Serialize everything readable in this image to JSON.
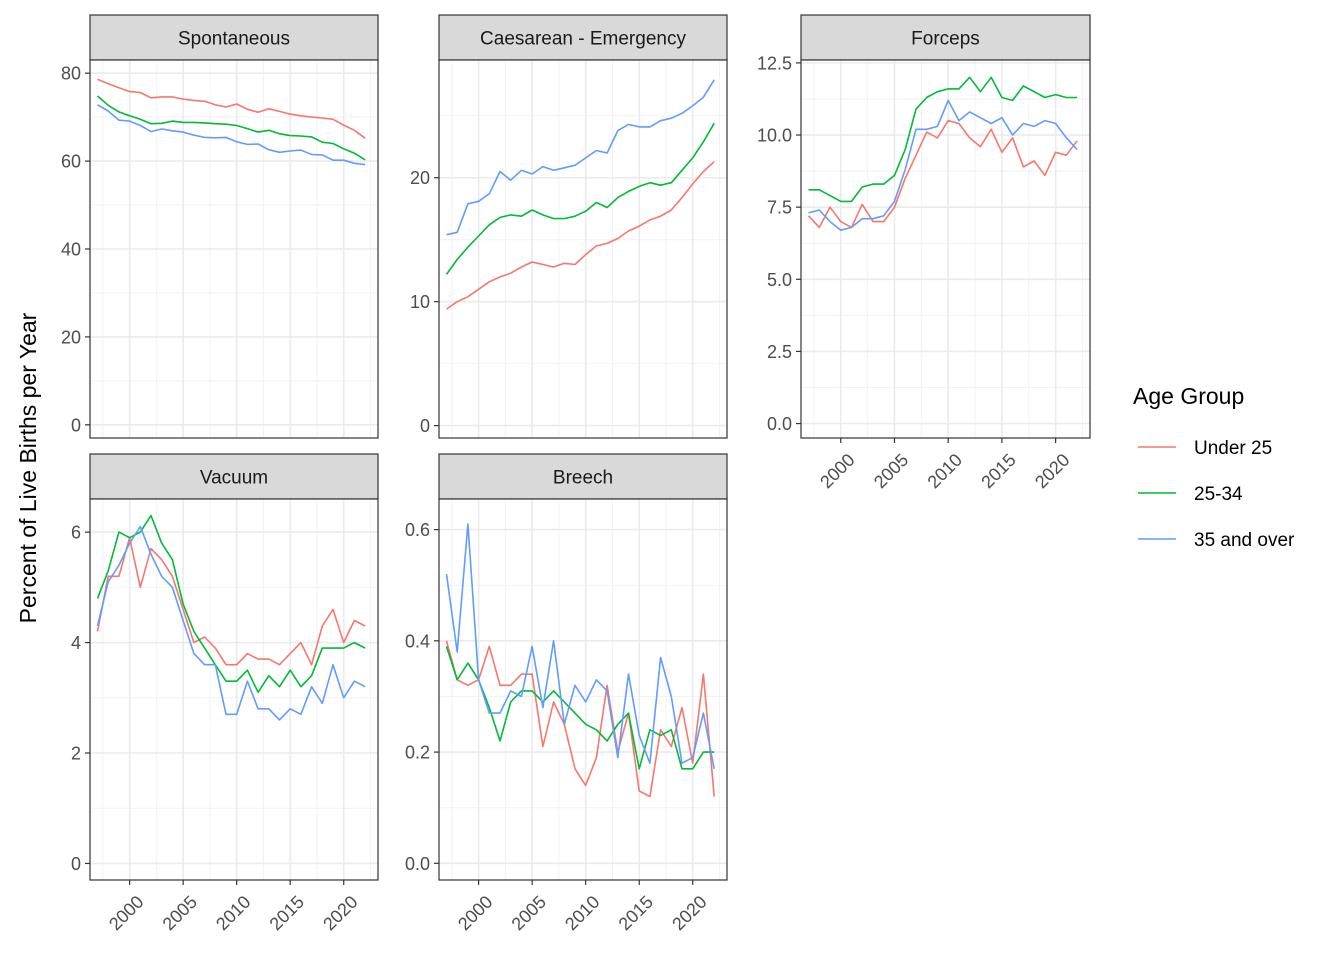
{
  "ylabel": "Percent of Live Births per Year",
  "legend": {
    "title": "Age Group",
    "entries": [
      {
        "name": "Under 25",
        "color": "#F8766D"
      },
      {
        "name": "25-34",
        "color": "#00BA38"
      },
      {
        "name": "35 and over",
        "color": "#619CFF"
      }
    ]
  },
  "chart_data": [
    {
      "type": "line",
      "title": "Spontaneous",
      "x": [
        1997,
        1998,
        1999,
        2000,
        2001,
        2002,
        2003,
        2004,
        2005,
        2006,
        2007,
        2008,
        2009,
        2010,
        2011,
        2012,
        2013,
        2014,
        2015,
        2016,
        2017,
        2018,
        2019,
        2020,
        2021,
        2022
      ],
      "xlim": [
        1996.3,
        2023.2
      ],
      "xticks": [
        2000,
        2005,
        2010,
        2015,
        2020
      ],
      "ylim": [
        -3,
        83
      ],
      "yticks": [
        0,
        20,
        40,
        60,
        80
      ],
      "series": [
        {
          "name": "Under 25",
          "values": [
            78.6,
            77.6,
            76.7,
            75.8,
            75.6,
            74.4,
            74.6,
            74.6,
            74.1,
            73.8,
            73.6,
            72.8,
            72.3,
            73.0,
            71.8,
            71.1,
            71.9,
            71.3,
            70.7,
            70.3,
            70.0,
            69.8,
            69.5,
            68.2,
            67.0,
            65.2
          ]
        },
        {
          "name": "25-34",
          "values": [
            74.8,
            72.7,
            71.2,
            70.3,
            69.5,
            68.5,
            68.6,
            69.1,
            68.8,
            68.8,
            68.7,
            68.5,
            68.4,
            68.1,
            67.4,
            66.6,
            67.0,
            66.2,
            65.8,
            65.7,
            65.5,
            64.3,
            64.0,
            62.8,
            61.8,
            60.3
          ]
        },
        {
          "name": "35 and over",
          "values": [
            72.8,
            71.4,
            69.3,
            69.1,
            68.1,
            66.7,
            67.3,
            66.9,
            66.6,
            65.9,
            65.4,
            65.3,
            65.4,
            64.4,
            63.8,
            63.9,
            62.6,
            62.0,
            62.3,
            62.5,
            61.5,
            61.4,
            60.2,
            60.2,
            59.5,
            59.2
          ]
        }
      ]
    },
    {
      "type": "line",
      "title": "Caesarean - Emergency",
      "x": [
        1997,
        1998,
        1999,
        2000,
        2001,
        2002,
        2003,
        2004,
        2005,
        2006,
        2007,
        2008,
        2009,
        2010,
        2011,
        2012,
        2013,
        2014,
        2015,
        2016,
        2017,
        2018,
        2019,
        2020,
        2021,
        2022
      ],
      "xlim": [
        1996.3,
        2023.2
      ],
      "xticks": [
        2000,
        2005,
        2010,
        2015,
        2020
      ],
      "ylim": [
        -1,
        29.5
      ],
      "yticks": [
        0,
        10,
        20
      ],
      "series": [
        {
          "name": "Under 25",
          "values": [
            9.4,
            10.0,
            10.4,
            11.0,
            11.6,
            12.0,
            12.3,
            12.8,
            13.2,
            13.0,
            12.8,
            13.1,
            13.0,
            13.8,
            14.5,
            14.7,
            15.1,
            15.7,
            16.1,
            16.6,
            16.9,
            17.4,
            18.4,
            19.5,
            20.5,
            21.3
          ]
        },
        {
          "name": "25-34",
          "values": [
            12.2,
            13.4,
            14.4,
            15.3,
            16.2,
            16.8,
            17.0,
            16.9,
            17.4,
            17.0,
            16.7,
            16.7,
            16.9,
            17.3,
            18.0,
            17.6,
            18.4,
            18.9,
            19.3,
            19.6,
            19.4,
            19.6,
            20.6,
            21.6,
            22.9,
            24.4
          ]
        },
        {
          "name": "35 and over",
          "values": [
            15.4,
            15.6,
            17.9,
            18.1,
            18.7,
            20.5,
            19.8,
            20.6,
            20.3,
            20.9,
            20.6,
            20.8,
            21.0,
            21.6,
            22.2,
            22.0,
            23.8,
            24.3,
            24.1,
            24.1,
            24.6,
            24.8,
            25.2,
            25.8,
            26.5,
            27.9
          ]
        }
      ]
    },
    {
      "type": "line",
      "title": "Forceps",
      "x": [
        1997,
        1998,
        1999,
        2000,
        2001,
        2002,
        2003,
        2004,
        2005,
        2006,
        2007,
        2008,
        2009,
        2010,
        2011,
        2012,
        2013,
        2014,
        2015,
        2016,
        2017,
        2018,
        2019,
        2020,
        2021,
        2022
      ],
      "xlim": [
        1996.3,
        2023.2
      ],
      "xticks": [
        2000,
        2005,
        2010,
        2015,
        2020
      ],
      "ylim": [
        -0.5,
        12.6
      ],
      "yticks": [
        0.0,
        2.5,
        5.0,
        7.5,
        10.0,
        12.5
      ],
      "yticklabels": [
        "0.0",
        "2.5",
        "5.0",
        "7.5",
        "10.0",
        "12.5"
      ],
      "series": [
        {
          "name": "Under 25",
          "values": [
            7.2,
            6.8,
            7.5,
            7.0,
            6.8,
            7.6,
            7.0,
            7.0,
            7.5,
            8.5,
            9.3,
            10.1,
            9.9,
            10.5,
            10.4,
            9.9,
            9.6,
            10.2,
            9.4,
            9.9,
            8.9,
            9.1,
            8.6,
            9.4,
            9.3,
            9.8
          ]
        },
        {
          "name": "25-34",
          "values": [
            8.1,
            8.1,
            7.9,
            7.7,
            7.7,
            8.2,
            8.3,
            8.3,
            8.6,
            9.5,
            10.9,
            11.3,
            11.5,
            11.6,
            11.6,
            12.0,
            11.5,
            12.0,
            11.3,
            11.2,
            11.7,
            11.5,
            11.3,
            11.4,
            11.3,
            11.3
          ]
        },
        {
          "name": "35 and over",
          "values": [
            7.3,
            7.4,
            7.0,
            6.7,
            6.8,
            7.1,
            7.1,
            7.2,
            7.7,
            8.8,
            10.2,
            10.2,
            10.3,
            11.2,
            10.5,
            10.8,
            10.6,
            10.4,
            10.6,
            10.0,
            10.4,
            10.3,
            10.5,
            10.4,
            9.9,
            9.5
          ]
        }
      ]
    },
    {
      "type": "line",
      "title": "Vacuum",
      "x": [
        1997,
        1998,
        1999,
        2000,
        2001,
        2002,
        2003,
        2004,
        2005,
        2006,
        2007,
        2008,
        2009,
        2010,
        2011,
        2012,
        2013,
        2014,
        2015,
        2016,
        2017,
        2018,
        2019,
        2020,
        2021,
        2022
      ],
      "xlim": [
        1996.3,
        2023.2
      ],
      "xticks": [
        2000,
        2005,
        2010,
        2015,
        2020
      ],
      "ylim": [
        -0.3,
        6.6
      ],
      "yticks": [
        0,
        2,
        4,
        6
      ],
      "series": [
        {
          "name": "Under 25",
          "values": [
            4.2,
            5.2,
            5.2,
            5.9,
            5.0,
            5.7,
            5.5,
            5.2,
            4.6,
            4.0,
            4.1,
            3.9,
            3.6,
            3.6,
            3.8,
            3.7,
            3.7,
            3.6,
            3.8,
            4.0,
            3.6,
            4.3,
            4.6,
            4.0,
            4.4,
            4.3
          ]
        },
        {
          "name": "25-34",
          "values": [
            4.8,
            5.3,
            6.0,
            5.9,
            6.0,
            6.3,
            5.8,
            5.5,
            4.7,
            4.2,
            3.9,
            3.6,
            3.3,
            3.3,
            3.5,
            3.1,
            3.4,
            3.2,
            3.5,
            3.2,
            3.4,
            3.9,
            3.9,
            3.9,
            4.0,
            3.9
          ]
        },
        {
          "name": "35 and over",
          "values": [
            4.3,
            5.1,
            5.4,
            5.8,
            6.1,
            5.6,
            5.2,
            5.0,
            4.4,
            3.8,
            3.6,
            3.6,
            2.7,
            2.7,
            3.3,
            2.8,
            2.8,
            2.6,
            2.8,
            2.7,
            3.2,
            2.9,
            3.6,
            3.0,
            3.3,
            3.2
          ]
        }
      ]
    },
    {
      "type": "line",
      "title": "Breech",
      "x": [
        1997,
        1998,
        1999,
        2000,
        2001,
        2002,
        2003,
        2004,
        2005,
        2006,
        2007,
        2008,
        2009,
        2010,
        2011,
        2012,
        2013,
        2014,
        2015,
        2016,
        2017,
        2018,
        2019,
        2020,
        2021,
        2022
      ],
      "xlim": [
        1996.3,
        2023.2
      ],
      "xticks": [
        2000,
        2005,
        2010,
        2015,
        2020
      ],
      "ylim": [
        -0.03,
        0.655
      ],
      "yticks": [
        0.0,
        0.2,
        0.4,
        0.6
      ],
      "yticklabels": [
        "0.0",
        "0.2",
        "0.4",
        "0.6"
      ],
      "series": [
        {
          "name": "Under 25",
          "values": [
            0.4,
            0.33,
            0.32,
            0.33,
            0.39,
            0.32,
            0.32,
            0.34,
            0.34,
            0.21,
            0.29,
            0.25,
            0.17,
            0.14,
            0.19,
            0.32,
            0.2,
            0.27,
            0.13,
            0.12,
            0.24,
            0.21,
            0.28,
            0.18,
            0.34,
            0.12
          ]
        },
        {
          "name": "25-34",
          "values": [
            0.39,
            0.33,
            0.36,
            0.33,
            0.28,
            0.22,
            0.29,
            0.31,
            0.31,
            0.29,
            0.31,
            0.29,
            0.27,
            0.25,
            0.24,
            0.22,
            0.25,
            0.27,
            0.17,
            0.24,
            0.23,
            0.24,
            0.17,
            0.17,
            0.2,
            0.2
          ]
        },
        {
          "name": "35 and over",
          "values": [
            0.52,
            0.38,
            0.61,
            0.33,
            0.27,
            0.27,
            0.31,
            0.3,
            0.39,
            0.28,
            0.4,
            0.25,
            0.32,
            0.29,
            0.33,
            0.31,
            0.19,
            0.34,
            0.23,
            0.18,
            0.37,
            0.3,
            0.18,
            0.19,
            0.27,
            0.17
          ]
        }
      ]
    }
  ]
}
